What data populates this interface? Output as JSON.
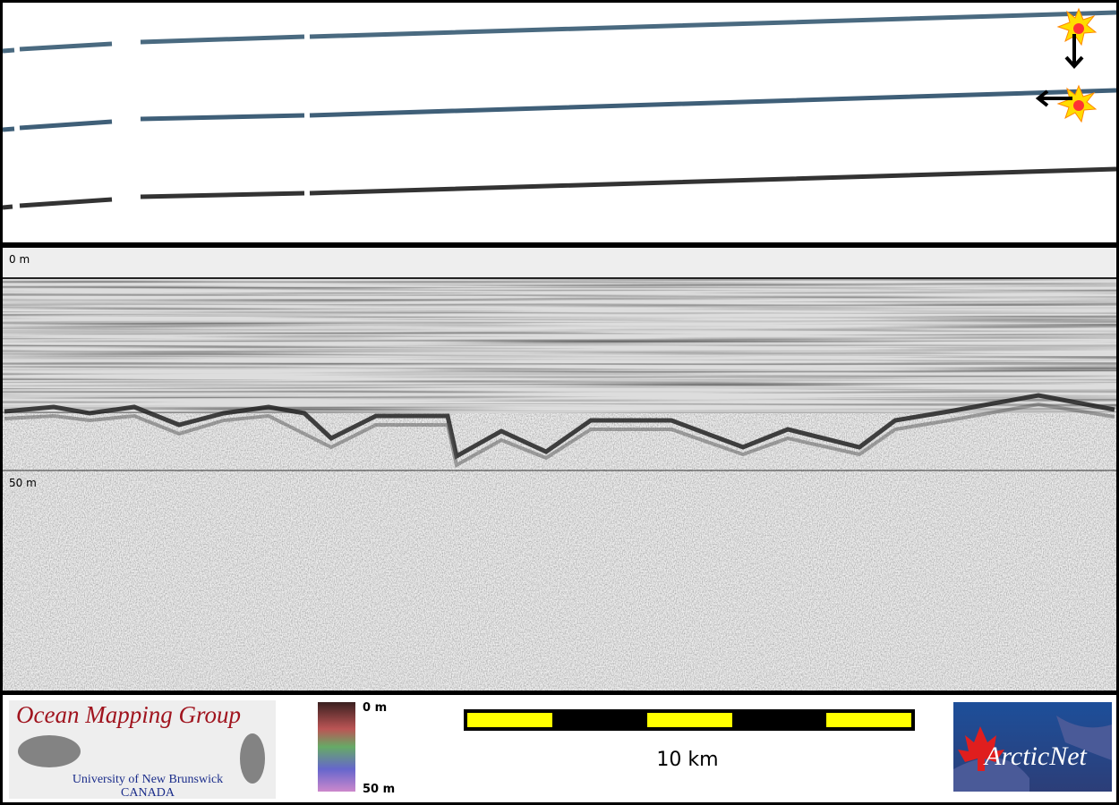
{
  "profile": {
    "depth_top_label": "0 m",
    "depth_mid_label": "50 m"
  },
  "logo_left": {
    "title": "Ocean Mapping Group",
    "line1": "University of New Brunswick",
    "line2": "CANADA"
  },
  "colorbar": {
    "top_label": "0 m",
    "bottom_label": "50 m"
  },
  "scale_bar": {
    "label": "10 km"
  },
  "logo_right": {
    "title": "ArcticNet"
  }
}
